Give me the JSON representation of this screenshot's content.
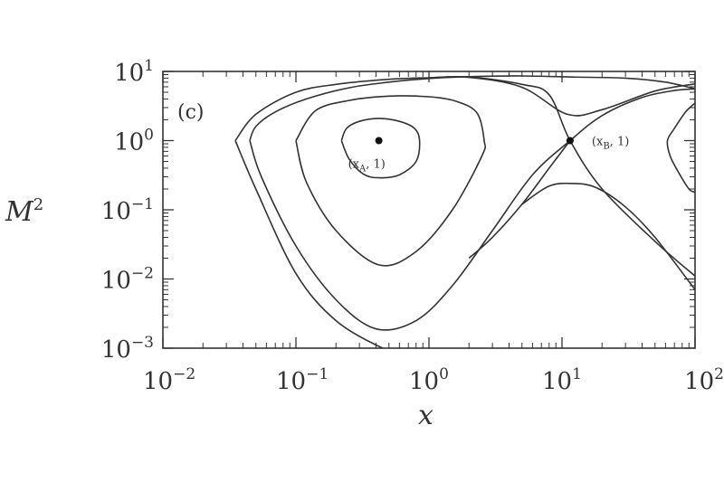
{
  "chart_data": {
    "type": "line",
    "panel_label": "(c)",
    "xlabel": "x",
    "ylabel": "M²",
    "x_scale": "log",
    "y_scale": "log",
    "xlim": [
      0.01,
      100
    ],
    "ylim": [
      0.001,
      10
    ],
    "x_ticks": [
      {
        "base": "10",
        "exp": "−2",
        "value": 0.01
      },
      {
        "base": "10",
        "exp": "−1",
        "value": 0.1
      },
      {
        "base": "10",
        "exp": "0",
        "value": 1
      },
      {
        "base": "10",
        "exp": "1",
        "value": 10
      },
      {
        "base": "10",
        "exp": "2",
        "value": 100
      }
    ],
    "y_ticks": [
      {
        "base": "10",
        "exp": "1",
        "value": 10
      },
      {
        "base": "10",
        "exp": "0",
        "value": 1
      },
      {
        "base": "10",
        "exp": "−1",
        "value": 0.1
      },
      {
        "base": "10",
        "exp": "−2",
        "value": 0.01
      },
      {
        "base": "10",
        "exp": "−3",
        "value": 0.001
      }
    ],
    "grid": false,
    "critical_points": [
      {
        "label_main": "(x",
        "label_sub": "A",
        "label_tail": ", 1)",
        "x": 0.42,
        "y": 1.0
      },
      {
        "label_main": "(x",
        "label_sub": "B",
        "label_tail": ", 1)",
        "x": 11.5,
        "y": 1.0
      }
    ],
    "series": [
      {
        "points": [
          [
            0.22,
            1.0
          ],
          [
            0.25,
            0.55
          ],
          [
            0.32,
            0.33
          ],
          [
            0.42,
            0.29
          ],
          [
            0.6,
            0.32
          ],
          [
            0.8,
            0.5
          ],
          [
            0.85,
            1.0
          ],
          [
            0.78,
            1.5
          ],
          [
            0.6,
            1.9
          ],
          [
            0.42,
            2.1
          ],
          [
            0.3,
            1.9
          ],
          [
            0.24,
            1.5
          ],
          [
            0.22,
            1.0
          ]
        ]
      },
      {
        "points": [
          [
            0.1,
            1.0
          ],
          [
            0.12,
            0.25
          ],
          [
            0.2,
            0.05
          ],
          [
            0.42,
            0.016
          ],
          [
            0.8,
            0.025
          ],
          [
            1.5,
            0.1
          ],
          [
            2.5,
            0.6
          ],
          [
            2.6,
            1.0
          ],
          [
            2.3,
            2.5
          ],
          [
            1.6,
            3.7
          ],
          [
            1.0,
            4.3
          ],
          [
            0.5,
            4.4
          ],
          [
            0.25,
            3.8
          ],
          [
            0.14,
            2.7
          ],
          [
            0.1,
            1.0
          ]
        ]
      },
      {
        "points": [
          [
            0.045,
            1.0
          ],
          [
            0.055,
            0.3
          ],
          [
            0.1,
            0.03
          ],
          [
            0.2,
            0.005
          ],
          [
            0.4,
            0.0019
          ],
          [
            0.8,
            0.0025
          ],
          [
            1.5,
            0.008
          ],
          [
            3,
            0.05
          ],
          [
            6,
            0.32
          ],
          [
            11.5,
            1.0
          ],
          [
            20,
            2.3
          ],
          [
            40,
            4.2
          ],
          [
            70,
            5.3
          ],
          [
            100,
            5.6
          ]
        ]
      },
      {
        "points": [
          [
            100,
            5.6
          ],
          [
            60,
            7.0
          ],
          [
            30,
            8.0
          ],
          [
            12,
            8.3
          ],
          [
            5,
            8.6
          ],
          [
            2,
            8.4
          ],
          [
            1,
            7.9
          ],
          [
            0.5,
            7.0
          ],
          [
            0.25,
            5.8
          ],
          [
            0.12,
            4.0
          ],
          [
            0.07,
            2.6
          ],
          [
            0.05,
            1.6
          ],
          [
            0.045,
            1.0
          ]
        ]
      },
      {
        "points": [
          [
            0.035,
            1.0
          ],
          [
            0.05,
            0.2
          ],
          [
            0.1,
            0.012
          ],
          [
            0.2,
            0.0025
          ],
          [
            0.45,
            0.001
          ],
          [
            0.6,
            0.00095
          ]
        ]
      },
      {
        "points": [
          [
            0.035,
            1.0
          ],
          [
            0.05,
            2.4
          ],
          [
            0.1,
            5.0
          ],
          [
            0.2,
            6.5
          ],
          [
            0.5,
            7.7
          ],
          [
            1,
            8.1
          ],
          [
            2,
            8.3
          ],
          [
            5,
            6.5
          ],
          [
            8,
            4.6
          ],
          [
            11.5,
            1.0
          ],
          [
            20,
            0.2
          ],
          [
            50,
            0.035
          ],
          [
            100,
            0.011
          ]
        ]
      },
      {
        "points": [
          [
            11.5,
            1.0
          ],
          [
            8,
            0.4
          ],
          [
            5,
            0.12
          ],
          [
            3,
            0.04
          ],
          [
            2,
            0.02
          ]
        ]
      },
      {
        "points": [
          [
            100,
            0.007
          ],
          [
            50,
            0.04
          ],
          [
            30,
            0.11
          ],
          [
            18,
            0.21
          ],
          [
            12,
            0.24
          ],
          [
            8,
            0.22
          ],
          [
            5,
            0.12
          ]
        ]
      },
      {
        "points": [
          [
            1.0,
            8.1
          ],
          [
            2,
            8.2
          ],
          [
            5,
            5.9
          ],
          [
            11,
            2.4
          ],
          [
            20,
            2.8
          ],
          [
            50,
            5.2
          ],
          [
            100,
            6.6
          ]
        ]
      },
      {
        "points": [
          [
            100,
            3.5
          ],
          [
            85,
            2.6
          ],
          [
            70,
            1.5
          ],
          [
            62,
            1.0
          ],
          [
            65,
            0.6
          ],
          [
            75,
            0.35
          ],
          [
            90,
            0.2
          ],
          [
            100,
            0.18
          ]
        ]
      }
    ]
  }
}
